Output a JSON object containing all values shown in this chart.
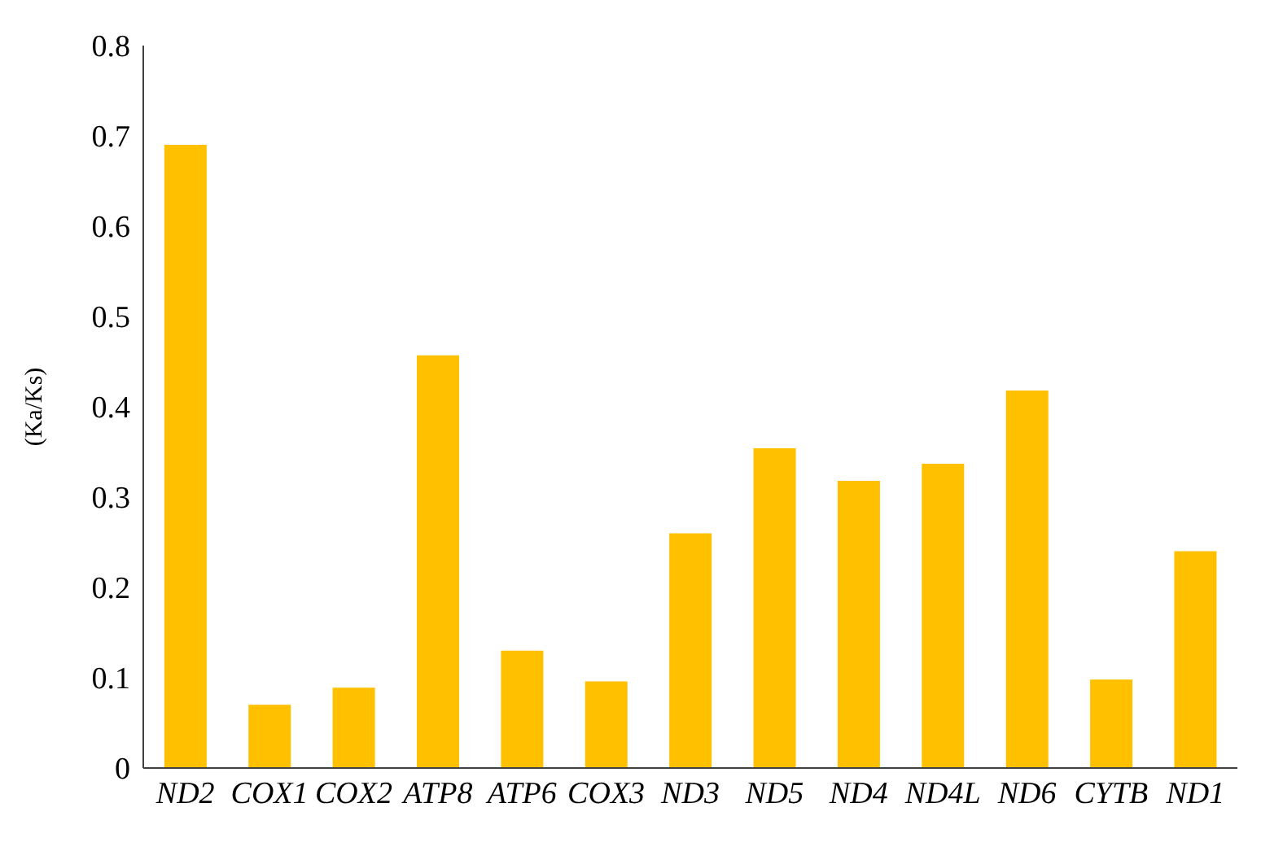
{
  "chart_data": {
    "type": "bar",
    "ylabel": "(Ka/Ks)",
    "categories": [
      "ND2",
      "COX1",
      "COX2",
      "ATP8",
      "ATP6",
      "COX3",
      "ND3",
      "ND5",
      "ND4",
      "ND4L",
      "ND6",
      "CYTB",
      "ND1"
    ],
    "values": [
      0.69,
      0.07,
      0.089,
      0.457,
      0.13,
      0.096,
      0.26,
      0.354,
      0.318,
      0.337,
      0.418,
      0.098,
      0.24
    ],
    "color": "#ffc000",
    "ylim": [
      0,
      0.8
    ],
    "yticks": [
      0,
      0.1,
      0.2,
      0.3,
      0.4,
      0.5,
      0.6,
      0.7,
      0.8
    ],
    "grid": false,
    "legend": false
  }
}
